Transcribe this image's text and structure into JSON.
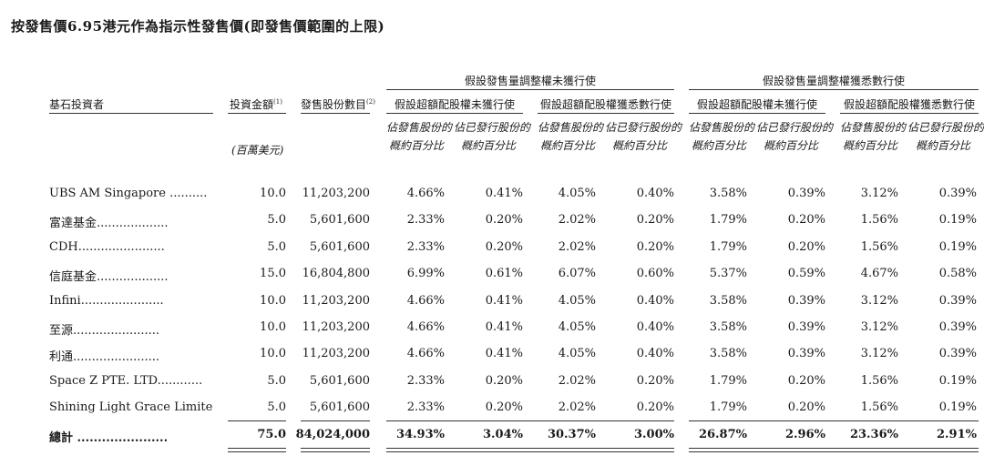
{
  "title": "按發售價6.95港元作為指示性發售價(即發售價範圍的上限)",
  "headers": {
    "investor": "基石投資者",
    "amount": "投資金額",
    "amount_note": "(1)",
    "shares": "發售股份數目",
    "shares_note": "(2)",
    "amount_unit": "(百萬美元)",
    "group_a": "假設發售量調整權未獲行使",
    "group_b": "假設發售量調整權獲悉數行使",
    "sub_unexercised": "假設超額配股權未獲行使",
    "sub_exercised": "假設超額配股權獲悉數行使",
    "pct_offer": "佔發售股份的概約百分比",
    "pct_offer_l1": "佔發售股份的",
    "pct_offer_l2": "概約百分比",
    "pct_issued_l1": "佔已發行股份的",
    "pct_issued_l2": "概約百分比"
  },
  "rows": [
    {
      "name": "UBS AM Singapore ..........",
      "amount": "10.0",
      "shares": "11,203,200",
      "c1": "4.66%",
      "c2": "0.41%",
      "c3": "4.05%",
      "c4": "0.40%",
      "c5": "3.58%",
      "c6": "0.39%",
      "c7": "3.12%",
      "c8": "0.39%"
    },
    {
      "name": "富達基金...................",
      "amount": "5.0",
      "shares": "5,601,600",
      "c1": "2.33%",
      "c2": "0.20%",
      "c3": "2.02%",
      "c4": "0.20%",
      "c5": "1.79%",
      "c6": "0.20%",
      "c7": "1.56%",
      "c8": "0.19%"
    },
    {
      "name": "CDH.......................",
      "amount": "5.0",
      "shares": "5,601,600",
      "c1": "2.33%",
      "c2": "0.20%",
      "c3": "2.02%",
      "c4": "0.20%",
      "c5": "1.79%",
      "c6": "0.20%",
      "c7": "1.56%",
      "c8": "0.19%"
    },
    {
      "name": "信庭基金...................",
      "amount": "15.0",
      "shares": "16,804,800",
      "c1": "6.99%",
      "c2": "0.61%",
      "c3": "6.07%",
      "c4": "0.60%",
      "c5": "5.37%",
      "c6": "0.59%",
      "c7": "4.67%",
      "c8": "0.58%"
    },
    {
      "name": "Infini......................",
      "amount": "10.0",
      "shares": "11,203,200",
      "c1": "4.66%",
      "c2": "0.41%",
      "c3": "4.05%",
      "c4": "0.40%",
      "c5": "3.58%",
      "c6": "0.39%",
      "c7": "3.12%",
      "c8": "0.39%"
    },
    {
      "name": "至源.......................",
      "amount": "10.0",
      "shares": "11,203,200",
      "c1": "4.66%",
      "c2": "0.41%",
      "c3": "4.05%",
      "c4": "0.40%",
      "c5": "3.58%",
      "c6": "0.39%",
      "c7": "3.12%",
      "c8": "0.39%"
    },
    {
      "name": "利通.......................",
      "amount": "10.0",
      "shares": "11,203,200",
      "c1": "4.66%",
      "c2": "0.41%",
      "c3": "4.05%",
      "c4": "0.40%",
      "c5": "3.58%",
      "c6": "0.39%",
      "c7": "3.12%",
      "c8": "0.39%"
    },
    {
      "name": "Space Z PTE. LTD............",
      "amount": "5.0",
      "shares": "5,601,600",
      "c1": "2.33%",
      "c2": "0.20%",
      "c3": "2.02%",
      "c4": "0.20%",
      "c5": "1.79%",
      "c6": "0.20%",
      "c7": "1.56%",
      "c8": "0.19%"
    },
    {
      "name": "Shining Light Grace Limited....",
      "amount": "5.0",
      "shares": "5,601,600",
      "c1": "2.33%",
      "c2": "0.20%",
      "c3": "2.02%",
      "c4": "0.20%",
      "c5": "1.79%",
      "c6": "0.20%",
      "c7": "1.56%",
      "c8": "0.19%"
    }
  ],
  "total": {
    "name": "總計 ......................",
    "amount": "75.0",
    "shares": "84,024,000",
    "c1": "34.93%",
    "c2": "3.04%",
    "c3": "30.37%",
    "c4": "3.00%",
    "c5": "26.87%",
    "c6": "2.96%",
    "c7": "23.36%",
    "c8": "2.91%"
  }
}
